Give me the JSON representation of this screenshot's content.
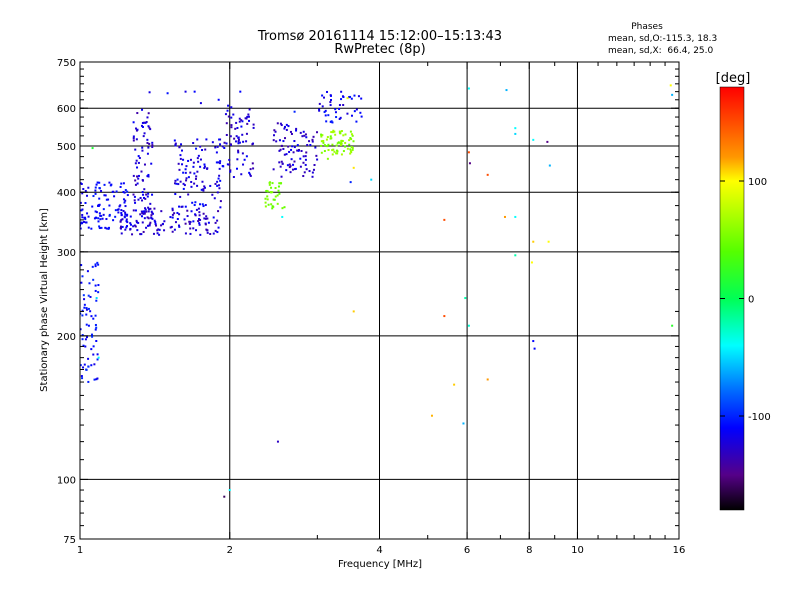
{
  "chart_data": {
    "type": "scatter",
    "title": "Tromsø 20161114 15:12:00–15:13:43",
    "subtitle": "RwPretec (8p)",
    "xlabel": "Frequency [MHz]",
    "ylabel": "Stationary phase Virtual Height [km]",
    "x_scale": "log",
    "y_scale": "log",
    "xlim": [
      1,
      16
    ],
    "ylim": [
      75,
      750
    ],
    "x_ticks": [
      {
        "value": 1,
        "label": "1"
      },
      {
        "value": 2,
        "label": "2"
      },
      {
        "value": 4,
        "label": "4"
      },
      {
        "value": 6,
        "label": "6"
      },
      {
        "value": 8,
        "label": "8"
      },
      {
        "value": 10,
        "label": "10"
      },
      {
        "value": 16,
        "label": "16"
      }
    ],
    "x_minor_ticks": [
      3,
      5,
      7,
      9,
      11,
      12,
      13,
      14,
      15
    ],
    "x_grid": [
      2,
      4,
      6,
      8,
      10
    ],
    "y_ticks": [
      {
        "value": 75,
        "label": "75"
      },
      {
        "value": 100,
        "label": "100"
      },
      {
        "value": 200,
        "label": "200"
      },
      {
        "value": 300,
        "label": "300"
      },
      {
        "value": 400,
        "label": "400"
      },
      {
        "value": 500,
        "label": "500"
      },
      {
        "value": 600,
        "label": "600"
      },
      {
        "value": 750,
        "label": "750"
      }
    ],
    "y_grid": [
      100,
      200,
      300,
      400,
      500,
      600
    ],
    "grid": true,
    "phase_stats": {
      "title": "Phases",
      "line1": "mean, sd,O:-115.3, 18.3",
      "line2": "mean, sd,X:  66.4, 25.0"
    },
    "colorbar": {
      "label": "[deg]",
      "range": [
        -180,
        180
      ],
      "ticks": [
        {
          "value": 100,
          "label": "100"
        },
        {
          "value": 0,
          "label": "0"
        },
        {
          "value": -100,
          "label": "-100"
        }
      ],
      "stops": [
        {
          "value": 180,
          "color": "#ff0000"
        },
        {
          "value": 120,
          "color": "#ff9900"
        },
        {
          "value": 100,
          "color": "#ffff00"
        },
        {
          "value": 40,
          "color": "#55ff00"
        },
        {
          "value": 0,
          "color": "#00ff55"
        },
        {
          "value": -40,
          "color": "#00ffff"
        },
        {
          "value": -80,
          "color": "#0066ff"
        },
        {
          "value": -110,
          "color": "#0000ff"
        },
        {
          "value": -150,
          "color": "#550088"
        },
        {
          "value": -180,
          "color": "#000000"
        }
      ]
    },
    "point_clouds": [
      {
        "name": "",
        "x_range": [
          1.0,
          1.09
        ],
        "y_range": [
          160,
          285
        ],
        "count": 70,
        "phase_range": [
          -120,
          -95
        ]
      },
      {
        "name": "",
        "x_range": [
          1.0,
          1.25
        ],
        "y_range": [
          335,
          420
        ],
        "count": 110,
        "phase_range": [
          -120,
          -100
        ]
      },
      {
        "name": "",
        "x_range": [
          1.2,
          1.9
        ],
        "y_range": [
          325,
          370
        ],
        "count": 140,
        "phase_range": [
          -140,
          -110
        ]
      },
      {
        "name": "",
        "x_range": [
          1.28,
          1.4
        ],
        "y_range": [
          360,
          600
        ],
        "count": 80,
        "phase_range": [
          -140,
          -110
        ]
      },
      {
        "name": "",
        "x_range": [
          1.55,
          1.95
        ],
        "y_range": [
          370,
          520
        ],
        "count": 110,
        "phase_range": [
          -135,
          -105
        ]
      },
      {
        "name": "",
        "x_range": [
          1.95,
          2.25
        ],
        "y_range": [
          430,
          610
        ],
        "count": 70,
        "phase_range": [
          -140,
          -110
        ]
      },
      {
        "name": "",
        "x_range": [
          2.45,
          3.0
        ],
        "y_range": [
          430,
          560
        ],
        "count": 90,
        "phase_range": [
          -140,
          -110
        ]
      },
      {
        "name": "",
        "x_range": [
          2.35,
          2.6
        ],
        "y_range": [
          370,
          420
        ],
        "count": 35,
        "phase_range": [
          40,
          60
        ]
      },
      {
        "name": "",
        "x_range": [
          3.05,
          3.55
        ],
        "y_range": [
          480,
          540
        ],
        "count": 70,
        "phase_range": [
          45,
          70
        ]
      },
      {
        "name": "",
        "x_range": [
          3.0,
          3.7
        ],
        "y_range": [
          560,
          650
        ],
        "count": 45,
        "phase_range": [
          -130,
          -100
        ]
      }
    ],
    "points": [
      {
        "x": 1.63,
        "y": 650,
        "phase": -120
      },
      {
        "x": 1.7,
        "y": 650,
        "phase": -110
      },
      {
        "x": 1.5,
        "y": 645,
        "phase": -105
      },
      {
        "x": 1.75,
        "y": 615,
        "phase": -120
      },
      {
        "x": 1.9,
        "y": 625,
        "phase": -110
      },
      {
        "x": 2.1,
        "y": 650,
        "phase": -110
      },
      {
        "x": 1.38,
        "y": 648,
        "phase": -120
      },
      {
        "x": 3.15,
        "y": 470,
        "phase": 60
      },
      {
        "x": 3.55,
        "y": 450,
        "phase": 105
      },
      {
        "x": 3.45,
        "y": 630,
        "phase": 95
      },
      {
        "x": 3.85,
        "y": 425,
        "phase": -50
      },
      {
        "x": 3.55,
        "y": 225,
        "phase": 110
      },
      {
        "x": 3.5,
        "y": 420,
        "phase": -100
      },
      {
        "x": 2.55,
        "y": 355,
        "phase": -40
      },
      {
        "x": 2.7,
        "y": 590,
        "phase": -100
      },
      {
        "x": 2.5,
        "y": 120,
        "phase": -130
      },
      {
        "x": 1.95,
        "y": 92,
        "phase": -160
      },
      {
        "x": 2.0,
        "y": 95,
        "phase": -40
      },
      {
        "x": 1.06,
        "y": 495,
        "phase": 15
      },
      {
        "x": 1.08,
        "y": 240,
        "phase": -50
      },
      {
        "x": 1.09,
        "y": 180,
        "phase": -40
      },
      {
        "x": 6.05,
        "y": 660,
        "phase": -40
      },
      {
        "x": 7.2,
        "y": 655,
        "phase": -60
      },
      {
        "x": 7.5,
        "y": 545,
        "phase": -40
      },
      {
        "x": 7.5,
        "y": 530,
        "phase": -50
      },
      {
        "x": 8.15,
        "y": 515,
        "phase": -40
      },
      {
        "x": 8.7,
        "y": 510,
        "phase": -150
      },
      {
        "x": 6.05,
        "y": 485,
        "phase": 150
      },
      {
        "x": 6.08,
        "y": 460,
        "phase": -150
      },
      {
        "x": 6.6,
        "y": 435,
        "phase": 150
      },
      {
        "x": 8.8,
        "y": 455,
        "phase": -60
      },
      {
        "x": 5.4,
        "y": 350,
        "phase": 150
      },
      {
        "x": 7.15,
        "y": 355,
        "phase": 120
      },
      {
        "x": 7.5,
        "y": 355,
        "phase": -40
      },
      {
        "x": 8.15,
        "y": 315,
        "phase": 110
      },
      {
        "x": 8.75,
        "y": 315,
        "phase": 100
      },
      {
        "x": 7.5,
        "y": 295,
        "phase": -20
      },
      {
        "x": 8.1,
        "y": 285,
        "phase": 100
      },
      {
        "x": 5.95,
        "y": 240,
        "phase": -20
      },
      {
        "x": 6.05,
        "y": 210,
        "phase": -30
      },
      {
        "x": 5.4,
        "y": 220,
        "phase": 150
      },
      {
        "x": 8.15,
        "y": 195,
        "phase": -110
      },
      {
        "x": 8.2,
        "y": 188,
        "phase": -110
      },
      {
        "x": 6.6,
        "y": 162,
        "phase": 120
      },
      {
        "x": 5.65,
        "y": 158,
        "phase": 110
      },
      {
        "x": 5.1,
        "y": 136,
        "phase": 115
      },
      {
        "x": 5.9,
        "y": 131,
        "phase": -60
      },
      {
        "x": 15.4,
        "y": 670,
        "phase": 100
      },
      {
        "x": 15.5,
        "y": 640,
        "phase": -60
      },
      {
        "x": 15.5,
        "y": 210,
        "phase": 20
      }
    ]
  }
}
